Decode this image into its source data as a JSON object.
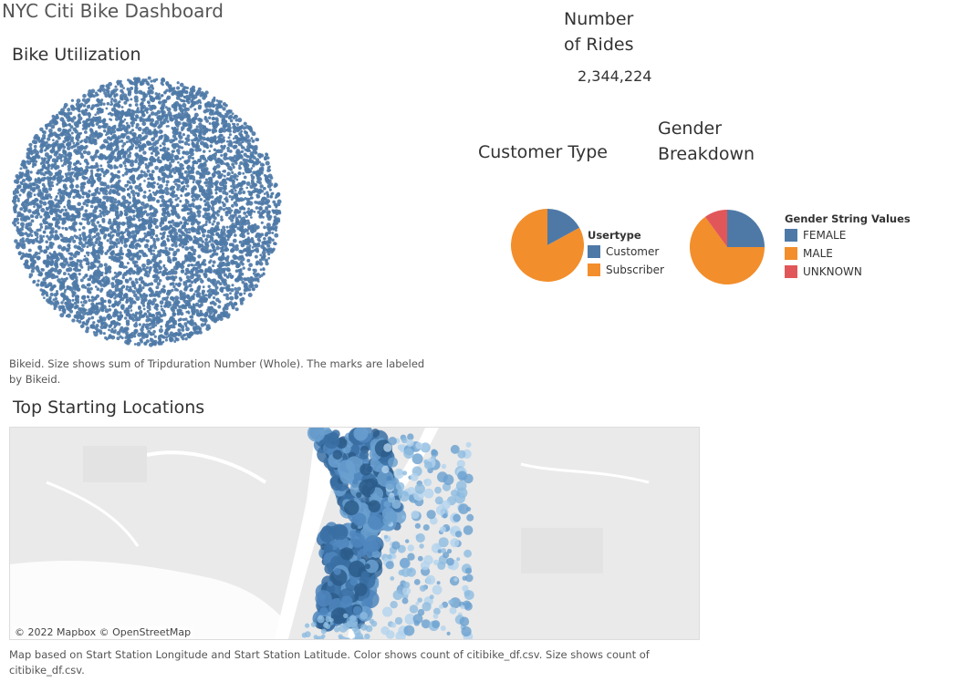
{
  "dashboard": {
    "title": "NYC Citi Bike Dashboard"
  },
  "bike_utilization": {
    "title": "Bike Utilization",
    "caption": "Bikeid.  Size shows sum of Tripduration Number (Whole).  The marks are labeled by Bikeid.",
    "mark_color": "#4e79a7"
  },
  "rides": {
    "title_line1": "Number",
    "title_line2": "of Rides",
    "value": "2,344,224"
  },
  "customer_type": {
    "title": "Customer Type",
    "legend_title": "Usertype",
    "items": [
      {
        "label": "Customer",
        "color": "#4e79a7"
      },
      {
        "label": "Subscriber",
        "color": "#f28e2b"
      }
    ]
  },
  "gender": {
    "title_line1": "Gender",
    "title_line2": "Breakdown",
    "legend_title": "Gender String Values",
    "items": [
      {
        "label": "FEMALE",
        "color": "#4e79a7"
      },
      {
        "label": "MALE",
        "color": "#f28e2b"
      },
      {
        "label": "UNKNOWN",
        "color": "#e15759"
      }
    ]
  },
  "chart_data": [
    {
      "type": "pie",
      "series_name": "Usertype",
      "categories": [
        "Customer",
        "Subscriber"
      ],
      "values": [
        17,
        83
      ]
    },
    {
      "type": "pie",
      "series_name": "Gender String Values",
      "categories": [
        "FEMALE",
        "MALE",
        "UNKNOWN"
      ],
      "values": [
        25,
        65,
        10
      ]
    }
  ],
  "map": {
    "title": "Top Starting Locations",
    "attribution": "© 2022 Mapbox  © OpenStreetMap",
    "caption": "Map based on Start Station Longitude and Start Station Latitude.  Color shows count of citibike_df.csv.  Size shows count of citibike_df.csv."
  }
}
